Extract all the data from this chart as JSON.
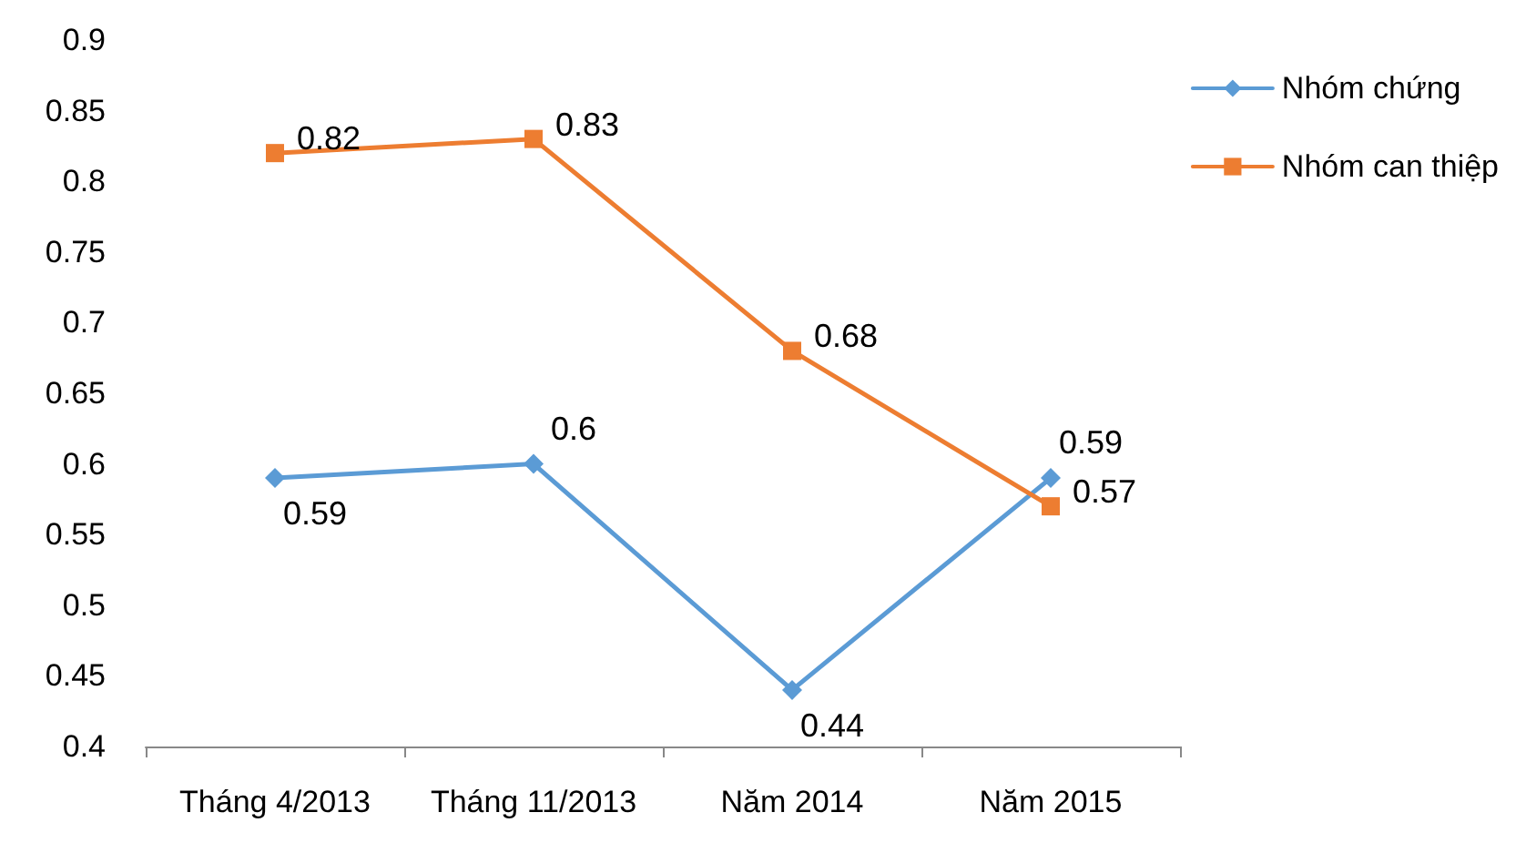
{
  "chart_data": {
    "type": "line",
    "categories": [
      "Tháng 4/2013",
      "Tháng 11/2013",
      "Năm 2014",
      "Năm 2015"
    ],
    "series": [
      {
        "name": "Nhóm chứng",
        "color": "#5b9bd5",
        "marker": "diamond",
        "values": [
          0.59,
          0.6,
          0.44,
          0.59
        ]
      },
      {
        "name": "Nhóm can thiệp",
        "color": "#ed7d31",
        "marker": "square",
        "values": [
          0.82,
          0.83,
          0.68,
          0.57
        ]
      }
    ],
    "ylim": [
      0.4,
      0.9
    ],
    "yticks": [
      0.4,
      0.45,
      0.5,
      0.55,
      0.6,
      0.65,
      0.7,
      0.75,
      0.8,
      0.85,
      0.9
    ],
    "grid": false,
    "legend": "top right",
    "data_labels": true
  }
}
